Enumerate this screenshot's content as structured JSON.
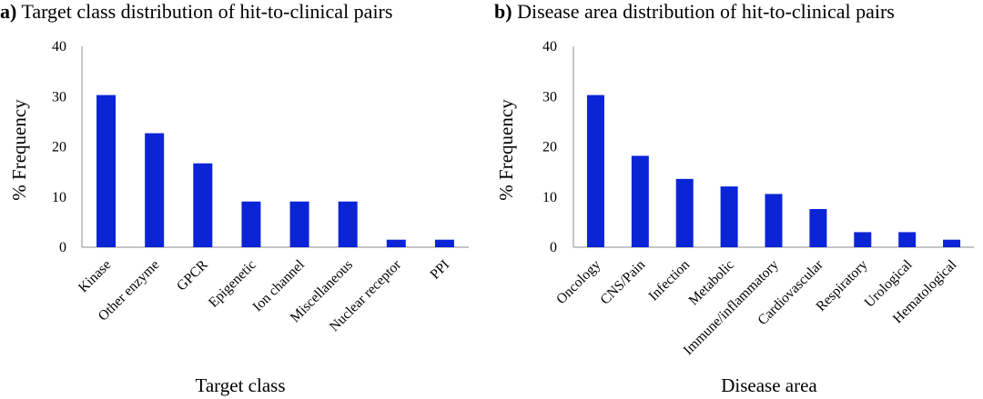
{
  "chart_data": [
    {
      "type": "bar",
      "panel_letter": "a)",
      "title": "Target class distribution of hit-to-clinical pairs",
      "xlabel": "Target class",
      "ylabel": "% Frequency",
      "ylim": [
        0,
        40
      ],
      "yticks": [
        "0",
        "10",
        "20",
        "30",
        "40"
      ],
      "categories": [
        "Kinase",
        "Other enzyme",
        "GPCR",
        "Epigenetic",
        "Ion channel",
        "Miscellaneous",
        "Nuclear receptor",
        "PPI"
      ],
      "values": [
        30.3,
        22.7,
        16.7,
        9.1,
        9.1,
        9.1,
        1.5,
        1.5
      ],
      "bar_color": "#0a24d6",
      "grid": false
    },
    {
      "type": "bar",
      "panel_letter": "b)",
      "title": "Disease area distribution of hit-to-clinical pairs",
      "xlabel": "Disease area",
      "ylabel": "% Frequency",
      "ylim": [
        0,
        40
      ],
      "yticks": [
        "0",
        "10",
        "20",
        "30",
        "40"
      ],
      "categories": [
        "Oncology",
        "CNS/Pain",
        "Infection",
        "Metabolic",
        "Immune/inflammatory",
        "Cardiovascular",
        "Respiratory",
        "Urological",
        "Hematological"
      ],
      "values": [
        30.3,
        18.2,
        13.6,
        12.1,
        10.6,
        7.6,
        3.0,
        3.0,
        1.5
      ],
      "bar_color": "#0a24d6",
      "grid": false
    }
  ]
}
